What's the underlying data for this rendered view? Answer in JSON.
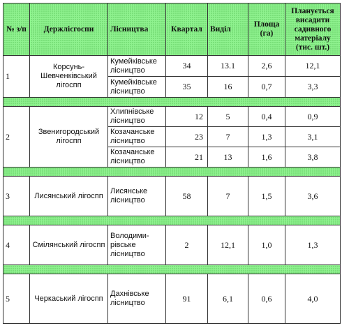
{
  "header": {
    "col_no": "№ з/п",
    "col_enterprise": "Держлісгоспи",
    "col_forestry": "Лісництва",
    "col_quarter": "Квартал",
    "col_section": "Виділ",
    "col_area": "Площа (га)",
    "col_planting": "Планується висадити садивного матеріалу (тис. шт.)"
  },
  "groups": [
    {
      "no": "1",
      "enterprise": "Корсунь-Шевченківський лігоспп",
      "rows": [
        {
          "forestry": "Кумейківське лісництво",
          "quarter": "34",
          "section": "13.1",
          "area": "2,6",
          "planting": "12,1"
        },
        {
          "forestry": "Кумейківське лісництво",
          "quarter": "35",
          "section": "16",
          "area": "0,7",
          "planting": "3,3"
        }
      ]
    },
    {
      "no": "2",
      "enterprise": "Звенигородський лігоспп",
      "rows": [
        {
          "forestry": "Хлипнівське лісництво",
          "quarter": "12",
          "section": "5",
          "area": "0,4",
          "planting": "0,9"
        },
        {
          "forestry": "Козачанське лісництво",
          "quarter": "23",
          "section": "7",
          "area": "1,3",
          "planting": "3,1"
        },
        {
          "forestry": "Козачанське лісництво",
          "quarter": "21",
          "section": "13",
          "area": "1,6",
          "planting": "3,8"
        }
      ]
    },
    {
      "no": "3",
      "enterprise": "Лисянський лігоспп",
      "rows": [
        {
          "forestry": "Лисянське лісництво",
          "quarter": "58",
          "section": "7",
          "area": "1,5",
          "planting": "3,6"
        }
      ]
    },
    {
      "no": "4",
      "enterprise": "Смілянський лігоспп",
      "rows": [
        {
          "forestry": "Володими-рівське лісництво",
          "quarter": "2",
          "section": "12,1",
          "area": "1,0",
          "planting": "1,3"
        }
      ]
    },
    {
      "no": "5",
      "enterprise": "Черкаський лігоспп",
      "rows": [
        {
          "forestry": "Дахнівське лісництво",
          "quarter": "91",
          "section": "6,1",
          "area": "0,6",
          "planting": "4,0"
        }
      ]
    }
  ]
}
